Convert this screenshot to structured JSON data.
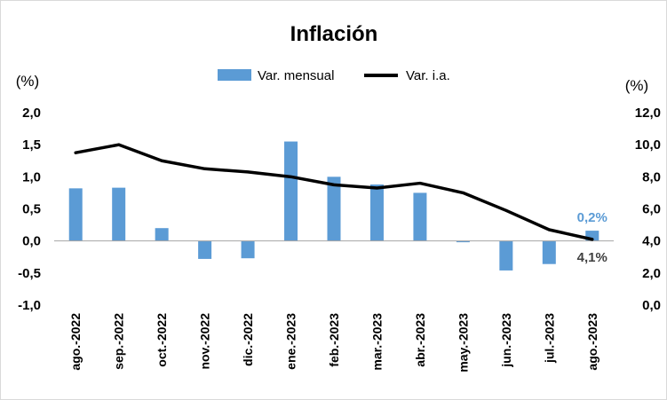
{
  "chart_data": {
    "type": "bar",
    "title": "Inflación",
    "y_left_label": "(%)",
    "y_right_label": "(%)",
    "categories": [
      "ago.-2022",
      "sep.-2022",
      "oct.-2022",
      "nov.-2022",
      "dic.-2022",
      "ene.-2023",
      "feb.-2023",
      "mar.-2023",
      "abr.-2023",
      "may.-2023",
      "jun.-2023",
      "jul.-2023",
      "ago.-2023"
    ],
    "left_ticks": [
      "2,0",
      "1,5",
      "1,0",
      "0,5",
      "0,0",
      "-0,5",
      "-1,0"
    ],
    "right_ticks": [
      "12,0",
      "10,0",
      "8,0",
      "6,0",
      "4,0",
      "2,0",
      "0,0"
    ],
    "ylim_left": [
      -1.0,
      2.0
    ],
    "ylim_right": [
      0.0,
      12.0
    ],
    "grid": false,
    "legend_position": "top-center",
    "series": [
      {
        "name": "Var. mensual",
        "kind": "bar",
        "axis": "left",
        "color": "#5b9bd5",
        "values": [
          0.82,
          0.83,
          0.2,
          -0.28,
          -0.27,
          1.55,
          1.0,
          0.88,
          0.75,
          -0.02,
          -0.46,
          -0.36,
          0.16
        ]
      },
      {
        "name": "Var. i.a.",
        "kind": "line",
        "axis": "right",
        "color": "#000000",
        "values": [
          9.5,
          10.0,
          9.0,
          8.5,
          8.3,
          8.0,
          7.5,
          7.3,
          7.6,
          7.0,
          5.9,
          4.7,
          4.1
        ]
      }
    ],
    "annotations": [
      {
        "text": "0,2%",
        "series": 0,
        "index": 12,
        "color": "#5b9bd5"
      },
      {
        "text": "4,1%",
        "series": 1,
        "index": 12,
        "color": "#404040"
      }
    ]
  }
}
